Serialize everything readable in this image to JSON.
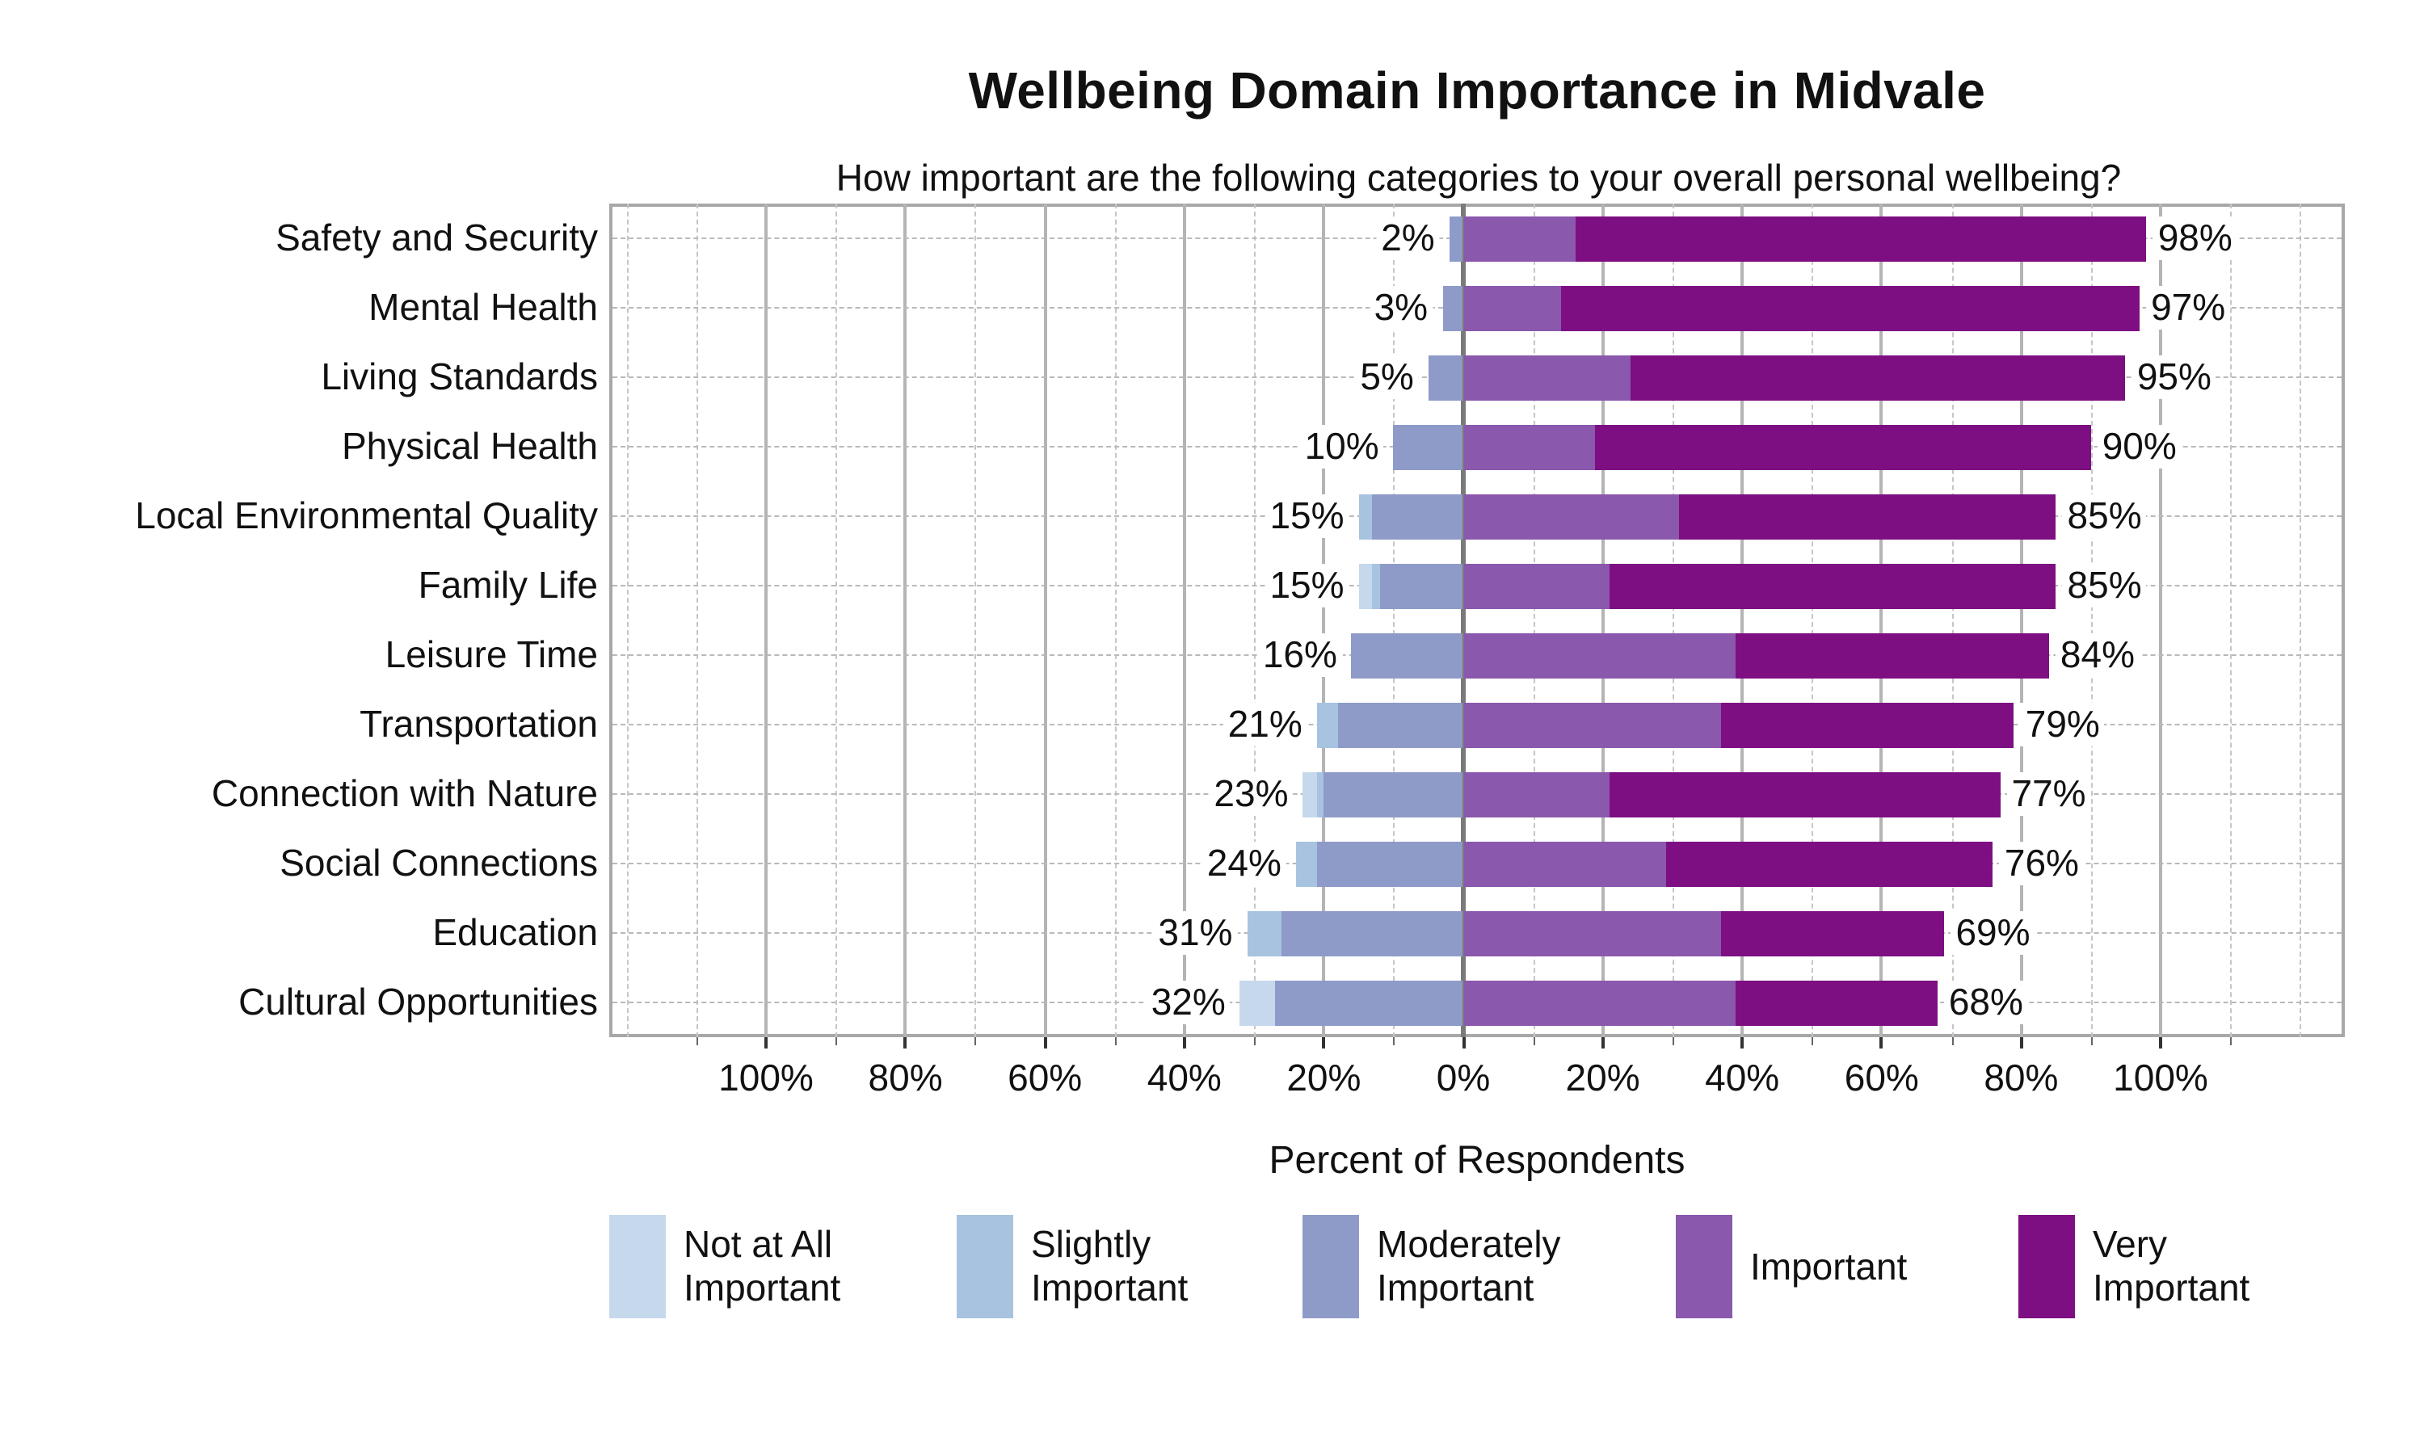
{
  "title": "Wellbeing Domain Importance in Midvale",
  "subtitle": "How important are the following categories to your overall personal wellbeing?",
  "xlabel": "Percent of Respondents",
  "colors": {
    "not_at_all": "#c6d8ec",
    "slightly": "#a7c3e0",
    "moderately": "#8e9bc9",
    "important": "#8a58ac",
    "very": "#7d0f82",
    "grid_major": "#b4b4b4",
    "grid_zero": "#7a7a7a",
    "frame": "#a8a8a8",
    "text": "#111111"
  },
  "legend": [
    {
      "lines": [
        "Not at All",
        "Important"
      ],
      "color_key": "not_at_all"
    },
    {
      "lines": [
        "Slightly",
        "Important"
      ],
      "color_key": "slightly"
    },
    {
      "lines": [
        "Moderately",
        "Important"
      ],
      "color_key": "moderately"
    },
    {
      "lines": [
        "Important"
      ],
      "color_key": "important"
    },
    {
      "lines": [
        "Very",
        "Important"
      ],
      "color_key": "very"
    }
  ],
  "chart_data": {
    "type": "diverging_stacked_bar",
    "orientation": "horizontal",
    "categories": [
      "Safety and Security",
      "Mental Health",
      "Living Standards",
      "Physical Health",
      "Local Environmental Quality",
      "Family Life",
      "Leisure Time",
      "Transportation",
      "Connection with Nature",
      "Social Connections",
      "Education",
      "Cultural Opportunities"
    ],
    "series": [
      {
        "name": "Not at All Important",
        "color_key": "not_at_all",
        "side": "left",
        "values": [
          0,
          0,
          0,
          0,
          0,
          2,
          0,
          0,
          2,
          0,
          0,
          5
        ]
      },
      {
        "name": "Slightly Important",
        "color_key": "slightly",
        "side": "left",
        "values": [
          0,
          0,
          0,
          0,
          2,
          1,
          0,
          3,
          1,
          3,
          5,
          0
        ]
      },
      {
        "name": "Moderately Important",
        "color_key": "moderately",
        "side": "left",
        "values": [
          2,
          3,
          5,
          10,
          13,
          12,
          16,
          18,
          20,
          21,
          26,
          27
        ]
      },
      {
        "name": "Important",
        "color_key": "important",
        "side": "right",
        "values": [
          16,
          14,
          24,
          19,
          31,
          21,
          39,
          37,
          21,
          29,
          37,
          39
        ]
      },
      {
        "name": "Very Important",
        "color_key": "very",
        "side": "right",
        "values": [
          82,
          83,
          71,
          71,
          54,
          64,
          45,
          42,
          56,
          47,
          32,
          29
        ]
      }
    ],
    "left_totals_labels": [
      "2%",
      "3%",
      "5%",
      "10%",
      "15%",
      "15%",
      "16%",
      "21%",
      "23%",
      "24%",
      "31%",
      "32%"
    ],
    "right_totals_labels": [
      "98%",
      "97%",
      "95%",
      "90%",
      "85%",
      "85%",
      "84%",
      "79%",
      "77%",
      "76%",
      "69%",
      "68%"
    ],
    "axis": {
      "tick_values": [
        -100,
        -80,
        -60,
        -40,
        -20,
        0,
        20,
        40,
        60,
        80,
        100
      ],
      "tick_labels": [
        "100%",
        "80%",
        "60%",
        "40%",
        "20%",
        "0%",
        "20%",
        "40%",
        "60%",
        "80%",
        "100%"
      ],
      "minor_tick_step": 10,
      "xlim": [
        -122.5,
        126.5
      ],
      "grid": true
    },
    "legend_position": "bottom"
  }
}
